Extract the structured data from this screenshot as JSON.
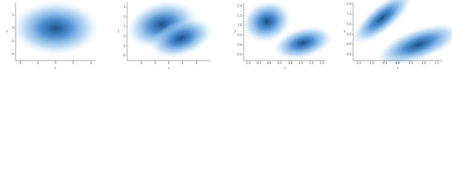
{
  "chart_data": [
    {
      "type": "density2d",
      "x_label": "x",
      "y_label": "y",
      "color": "#2e75c4",
      "xlim": [
        -4.5,
        4.5
      ],
      "xticks": [
        -4,
        -2,
        0,
        2,
        4
      ],
      "ylim": [
        -5,
        4
      ],
      "yticks": [
        -4,
        -2,
        0,
        2
      ],
      "clusters": [
        {
          "x": 0,
          "y": 0,
          "sx": 1.9,
          "sy": 1.6,
          "angle": 0
        }
      ]
    },
    {
      "type": "density2d",
      "x_label": "x",
      "y_label": "y",
      "color": "#2e75c4",
      "xlim": [
        -3,
        3
      ],
      "xticks": [
        -2,
        -1,
        0,
        1,
        2
      ],
      "ylim": [
        -2.5,
        3.5
      ],
      "yticks": [
        -2,
        -1,
        0,
        1,
        2,
        3
      ],
      "clusters": [
        {
          "x": -0.5,
          "y": 1.2,
          "sx": 1.0,
          "sy": 0.9,
          "angle": -15
        },
        {
          "x": 0.9,
          "y": -0.2,
          "sx": 0.9,
          "sy": 0.7,
          "angle": -20
        }
      ]
    },
    {
      "type": "density2d",
      "x_label": "x",
      "y_label": "y",
      "color": "#2e75c4",
      "xlim": [
        -1.2,
        2.7
      ],
      "xticks": [
        {
          "value": -1,
          "label": "-1.0"
        },
        {
          "value": -0.5,
          "label": "-0.5"
        },
        {
          "value": 0,
          "label": "0.0"
        },
        {
          "value": 0.5,
          "label": "0.5"
        },
        {
          "value": 1,
          "label": "1.0"
        },
        {
          "value": 1.5,
          "label": "1.5"
        },
        {
          "value": 2,
          "label": "2.0"
        },
        {
          "value": 2.5,
          "label": "2.5"
        }
      ],
      "ylim": [
        -0.8,
        2.2
      ],
      "yticks": [
        {
          "value": -0.5,
          "label": "-0.5"
        },
        {
          "value": 0,
          "label": "0.0"
        },
        {
          "value": 0.5,
          "label": "0.5"
        },
        {
          "value": 1,
          "label": "1.0"
        },
        {
          "value": 1.5,
          "label": "1.5"
        },
        {
          "value": 2,
          "label": "2.0"
        }
      ],
      "clusters": [
        {
          "x": -0.1,
          "y": 1.2,
          "sx": 0.45,
          "sy": 0.4,
          "angle": -20
        },
        {
          "x": 1.6,
          "y": 0.1,
          "sx": 0.55,
          "sy": 0.3,
          "angle": -15
        }
      ]
    },
    {
      "type": "density2d",
      "x_label": "x",
      "y_label": "y",
      "color": "#2e75c4",
      "xlim": [
        -1.7,
        1.7
      ],
      "xticks": [
        {
          "value": -1.5,
          "label": "-1.5"
        },
        {
          "value": -1,
          "label": "-1.0"
        },
        {
          "value": -0.5,
          "label": "-0.5"
        },
        {
          "value": 0,
          "label": "0.0"
        },
        {
          "value": 0.5,
          "label": "0.5"
        },
        {
          "value": 1,
          "label": "1.0"
        },
        {
          "value": 1.5,
          "label": "1.5"
        }
      ],
      "ylim": [
        -0.8,
        2.1
      ],
      "yticks": [
        {
          "value": -0.5,
          "label": "-0.5"
        },
        {
          "value": 0,
          "label": "0.0"
        },
        {
          "value": 0.5,
          "label": "0.5"
        },
        {
          "value": 1,
          "label": "1.0"
        },
        {
          "value": 1.5,
          "label": "1.5"
        },
        {
          "value": 2,
          "label": "2.0"
        }
      ],
      "clusters": [
        {
          "x": -0.6,
          "y": 1.3,
          "sx": 0.55,
          "sy": 0.25,
          "angle": -40
        },
        {
          "x": 0.8,
          "y": 0.0,
          "sx": 0.65,
          "sy": 0.3,
          "angle": -20
        }
      ]
    }
  ]
}
